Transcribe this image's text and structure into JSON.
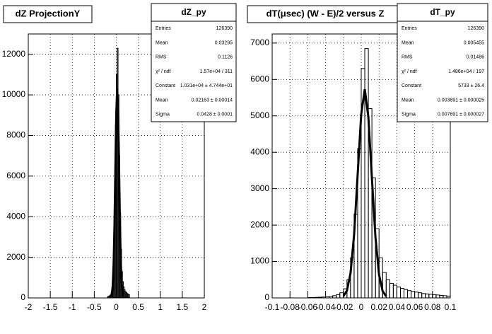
{
  "chart_data": [
    {
      "type": "histogram",
      "title": "dZ ProjectionY",
      "bins": [
        -0.2,
        -0.18,
        -0.16,
        -0.14,
        -0.12,
        -0.1,
        -0.08,
        -0.06,
        -0.04,
        -0.02,
        0,
        0.02,
        0.04,
        0.06,
        0.08,
        0.1,
        0.12,
        0.14,
        0.16,
        0.18,
        0.2,
        0.22,
        0.24,
        0.26,
        0.28,
        0.3
      ],
      "values": [
        60,
        80,
        100,
        150,
        250,
        500,
        1200,
        2800,
        5600,
        8500,
        11000,
        12300,
        10000,
        7000,
        4200,
        2400,
        1300,
        800,
        550,
        400,
        320,
        260,
        220,
        190,
        160
      ],
      "color": "#000000",
      "fit": {
        "x": [
          -0.12,
          -0.1,
          -0.08,
          -0.06,
          -0.04,
          -0.02,
          0,
          0.02,
          0.04,
          0.06,
          0.08,
          0.1,
          0.12,
          0.14,
          0.16
        ],
        "values": [
          43,
          181,
          616,
          1676,
          3660,
          6429,
          9078,
          10303,
          9400,
          6894,
          4063,
          1926,
          734,
          225,
          55
        ]
      },
      "xlim": [
        -2,
        2
      ],
      "ylim": [
        0,
        13000
      ],
      "xticks": [
        -2,
        -1.5,
        -1,
        -0.5,
        0,
        0.5,
        1,
        1.5,
        2
      ],
      "yticks": [
        0,
        2000,
        4000,
        6000,
        8000,
        10000,
        12000
      ],
      "grid": true,
      "stats": {
        "title": "dZ_py",
        "rows": [
          [
            "Entries",
            "126390"
          ],
          [
            "Mean",
            "0.03295"
          ],
          [
            "RMS",
            "0.1126"
          ],
          [
            "χ² / ndf",
            "1.57e+04 / 311"
          ],
          [
            "Constant",
            "1.031e+04 ± 4.744e+01"
          ],
          [
            "Mean",
            "0.02163 ± 0.00014"
          ],
          [
            "Sigma",
            "0.0428 ± 0.0001"
          ]
        ]
      }
    },
    {
      "type": "histogram",
      "title": "dT(μsec) (W - E)/2 versus Z",
      "bins": [
        -0.06,
        -0.056,
        -0.052,
        -0.048,
        -0.044,
        -0.04,
        -0.036,
        -0.032,
        -0.028,
        -0.024,
        -0.02,
        -0.016,
        -0.012,
        -0.008,
        -0.004,
        0,
        0.004,
        0.008,
        0.012,
        0.016,
        0.02,
        0.024,
        0.028,
        0.032,
        0.036,
        0.04,
        0.044,
        0.048,
        0.052,
        0.056,
        0.06,
        0.064,
        0.068,
        0.072,
        0.076,
        0.08,
        0.084,
        0.088,
        0.092,
        0.096,
        0.1
      ],
      "values": [
        10,
        10,
        15,
        20,
        25,
        30,
        40,
        60,
        90,
        140,
        250,
        500,
        1100,
        2300,
        4100,
        6300,
        6850,
        5200,
        3300,
        1900,
        1100,
        700,
        500,
        400,
        350,
        300,
        260,
        230,
        200,
        180,
        160,
        140,
        120,
        110,
        100,
        90,
        80,
        70,
        60,
        50
      ],
      "color": "#000000",
      "fit": {
        "x": [
          -0.02,
          -0.016,
          -0.012,
          -0.008,
          -0.004,
          0,
          0.004,
          0.008,
          0.012,
          0.016,
          0.02,
          0.024,
          0.028
        ],
        "values": [
          46,
          202,
          678,
          1735,
          3388,
          5045,
          5733,
          4970,
          3288,
          1659,
          639,
          188,
          42
        ]
      },
      "xlim": [
        -0.1,
        0.1
      ],
      "ylim": [
        0,
        7250
      ],
      "xticks": [
        -0.1,
        -0.08,
        -0.06,
        -0.04,
        -0.02,
        0,
        0.02,
        0.04,
        0.06,
        0.08,
        0.1
      ],
      "yticks": [
        0,
        1000,
        2000,
        3000,
        4000,
        5000,
        6000,
        7000
      ],
      "grid": true,
      "stats": {
        "title": "dT_py",
        "rows": [
          [
            "Entries",
            "126390"
          ],
          [
            "Mean",
            "0.005455"
          ],
          [
            "RMS",
            "0.01486"
          ],
          [
            "χ² / ndf",
            "1.486e+04 / 197"
          ],
          [
            "Constant",
            "5733 ± 26.4"
          ],
          [
            "Mean",
            "0.003891 ± 0.000025"
          ],
          [
            "Sigma",
            "0.007691 ± 0.000027"
          ]
        ]
      }
    }
  ]
}
